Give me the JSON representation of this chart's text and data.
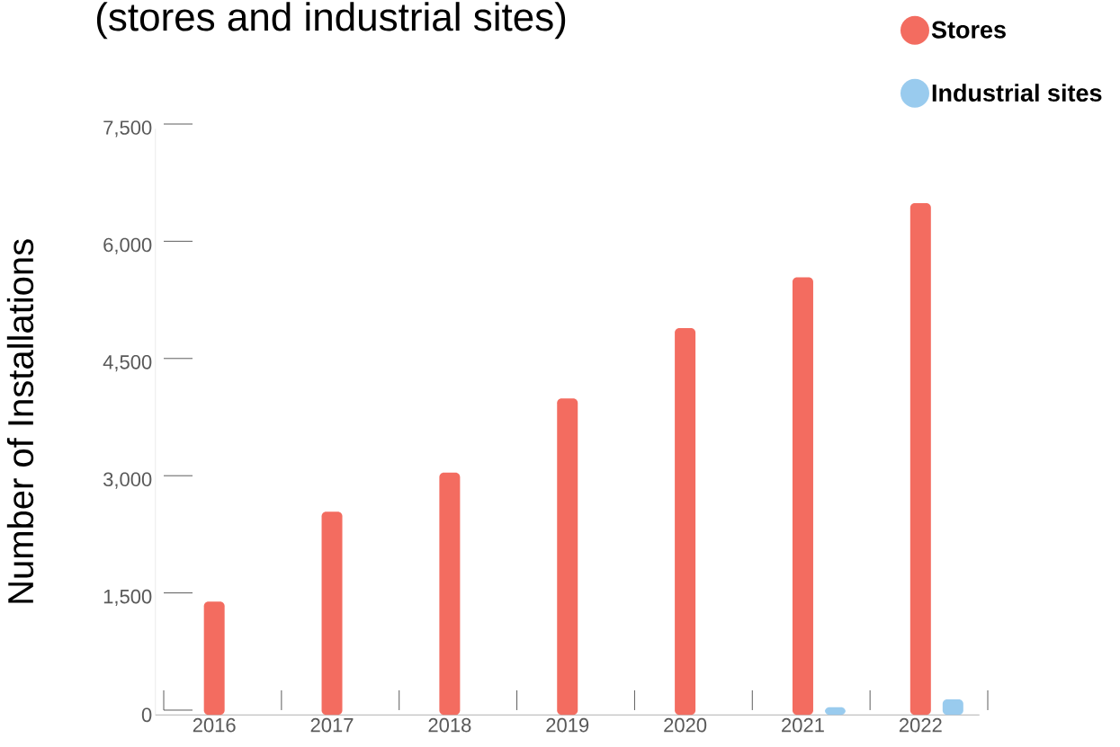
{
  "chart_data": {
    "type": "bar",
    "title": "(stores and industrial sites)",
    "ylabel": "Number of Installations",
    "categories": [
      "2016",
      "2017",
      "2018",
      "2019",
      "2020",
      "2021",
      "2022"
    ],
    "series": [
      {
        "name": "Stores",
        "color": "#f36c60",
        "values": [
          1450,
          2600,
          3100,
          4050,
          4950,
          5600,
          6550
        ]
      },
      {
        "name": "Industrial sites",
        "color": "#99cbee",
        "values": [
          null,
          null,
          null,
          null,
          null,
          100,
          200
        ]
      }
    ],
    "ylim": [
      0,
      7500
    ],
    "yticks": [
      0,
      {
        "value": 1500,
        "label": "1,500"
      },
      {
        "value": 3000,
        "label": "3,000"
      },
      {
        "value": 4500,
        "label": "4,500"
      },
      {
        "value": 6000,
        "label": "6,000"
      },
      {
        "value": 7500,
        "label": "7,500"
      }
    ],
    "legend": "top right"
  }
}
